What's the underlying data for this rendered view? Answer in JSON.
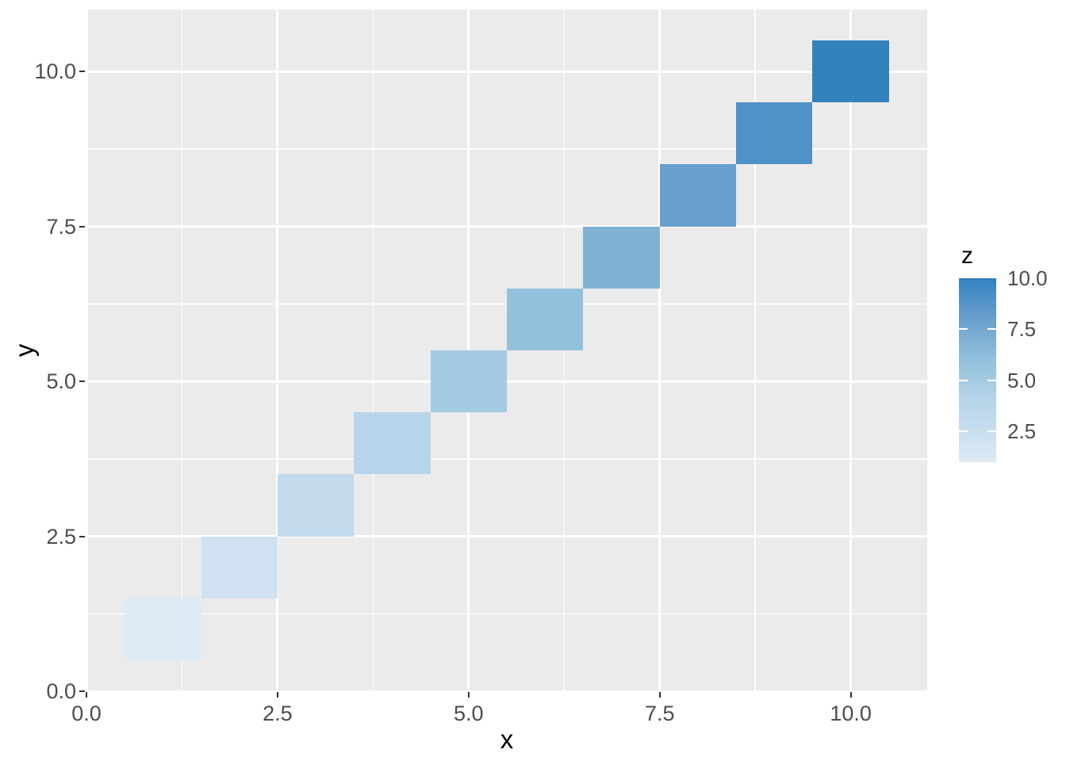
{
  "figure": {
    "background": "#ffffff",
    "panel_background": "#ebebeb",
    "grid_color": "#ffffff",
    "axis_text_color": "#4d4d4d",
    "axis_title_color": "#000000",
    "tick_mark_color": "#333333"
  },
  "chart_data": {
    "type": "heatmap",
    "title": "",
    "xlabel": "x",
    "ylabel": "y",
    "xlim": [
      0,
      11
    ],
    "ylim": [
      0,
      11
    ],
    "grid": true,
    "x_major_breaks": [
      0,
      2.5,
      5,
      7.5,
      10
    ],
    "x_tick_labels": [
      "0.0",
      "2.5",
      "5.0",
      "7.5",
      "10.0"
    ],
    "y_major_breaks": [
      0,
      2.5,
      5,
      7.5,
      10
    ],
    "y_tick_labels": [
      "0.0",
      "2.5",
      "5.0",
      "7.5",
      "10.0"
    ],
    "minor_breaks": [
      1.25,
      3.75,
      6.25,
      8.75
    ],
    "tile_width": 1,
    "tile_height": 1,
    "points": [
      {
        "x": 1,
        "y": 1,
        "z": 1,
        "color": "#deebf5"
      },
      {
        "x": 2,
        "y": 2,
        "z": 2,
        "color": "#d0e2f1"
      },
      {
        "x": 3,
        "y": 3,
        "z": 3,
        "color": "#c3daed"
      },
      {
        "x": 4,
        "y": 4,
        "z": 4,
        "color": "#b7d5ea"
      },
      {
        "x": 5,
        "y": 5,
        "z": 5,
        "color": "#a5cbe3"
      },
      {
        "x": 6,
        "y": 6,
        "z": 6,
        "color": "#93c1dd"
      },
      {
        "x": 7,
        "y": 7,
        "z": 7,
        "color": "#7fb0d5"
      },
      {
        "x": 8,
        "y": 8,
        "z": 8,
        "color": "#699fcd"
      },
      {
        "x": 9,
        "y": 9,
        "z": 9,
        "color": "#5092c7"
      },
      {
        "x": 10,
        "y": 10,
        "z": 10,
        "color": "#3182bd"
      }
    ],
    "legend": {
      "title": "z",
      "position": "right",
      "range": [
        1,
        10
      ],
      "breaks": [
        2.5,
        5.0,
        7.5,
        10.0
      ],
      "labels": [
        "2.5",
        "5.0",
        "7.5",
        "10.0"
      ],
      "gradient_low": "#deebf5",
      "gradient_high": "#3182bd"
    }
  }
}
